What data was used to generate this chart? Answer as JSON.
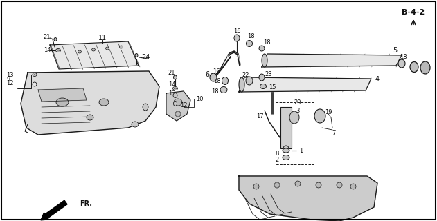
{
  "bg_color": "#ffffff",
  "border_color": "#000000",
  "fig_width": 6.31,
  "fig_height": 3.2,
  "dpi": 100,
  "ref_label": "B-4-2",
  "fr_label": "FR.",
  "line_color": "#1a1a1a",
  "text_color": "#111111",
  "font_size": 7.0,
  "small_font": 6.0,
  "gray_fill": "#d8d8d8",
  "light_gray": "#e8e8e8",
  "mid_gray": "#c8c8c8"
}
